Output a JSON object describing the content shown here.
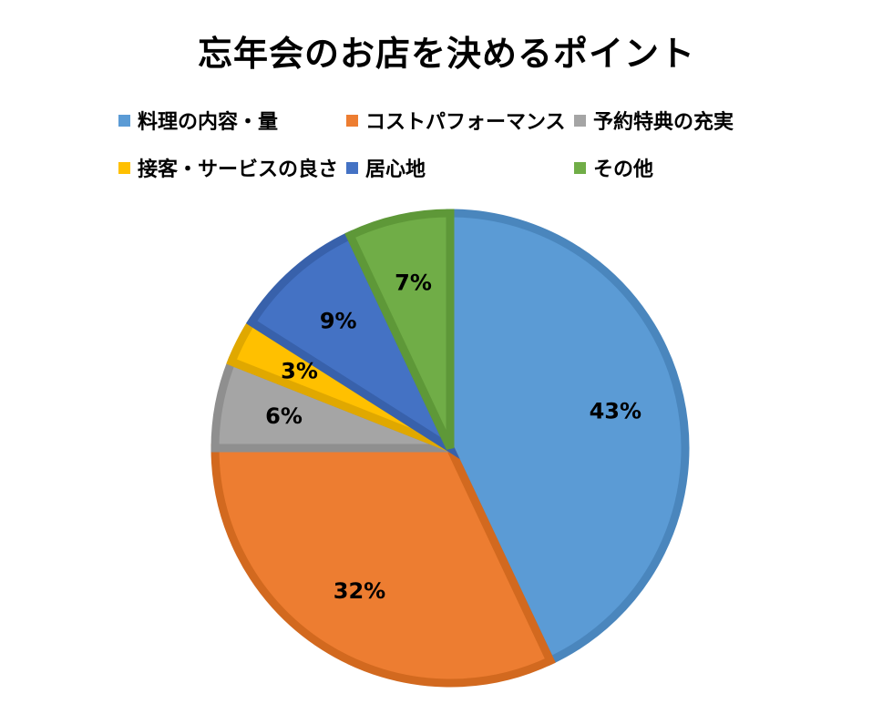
{
  "chart_data": {
    "type": "pie",
    "title": "忘年会のお店を決めるポイント",
    "legend_position": "top",
    "slices": [
      {
        "name": "料理の内容・量",
        "value": 43,
        "label": "43%",
        "color": "#5b9bd5",
        "edge": "#4a86bd"
      },
      {
        "name": "コストパフォーマンス",
        "value": 32,
        "label": "32%",
        "color": "#ed7d31",
        "edge": "#d2691f"
      },
      {
        "name": "予約特典の充実",
        "value": 6,
        "label": "6%",
        "color": "#a5a5a5",
        "edge": "#8f8f8f"
      },
      {
        "name": "接客・サービスの良さ",
        "value": 3,
        "label": "3%",
        "color": "#ffc000",
        "edge": "#e0a800"
      },
      {
        "name": "居心地",
        "value": 9,
        "label": "9%",
        "color": "#4472c4",
        "edge": "#3861ab"
      },
      {
        "name": "その他",
        "value": 7,
        "label": "7%",
        "color": "#70ad47",
        "edge": "#5e9838"
      }
    ]
  }
}
